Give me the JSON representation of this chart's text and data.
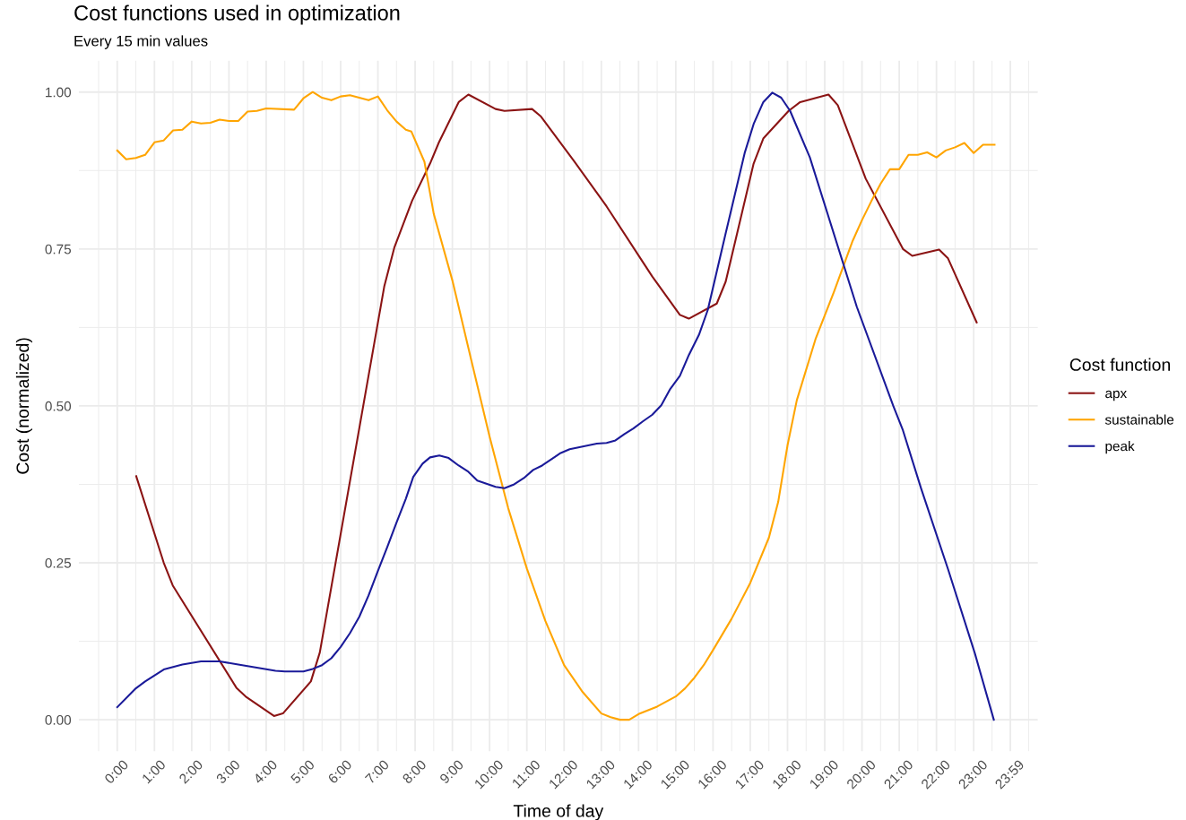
{
  "chart_data": {
    "type": "line",
    "title": "Cost functions used in optimization",
    "subtitle": "Every 15 min values",
    "xlabel": "Time of day",
    "ylabel": "Cost (normalized)",
    "legend_title": "Cost function",
    "xlim": [
      -1.03,
      24.72
    ],
    "ylim": [
      -0.05,
      1.05
    ],
    "xticks": [
      {
        "value": 0,
        "label": "0:00"
      },
      {
        "value": 1,
        "label": "1:00"
      },
      {
        "value": 2,
        "label": "2:00"
      },
      {
        "value": 3,
        "label": "3:00"
      },
      {
        "value": 4,
        "label": "4:00"
      },
      {
        "value": 5,
        "label": "5:00"
      },
      {
        "value": 6,
        "label": "6:00"
      },
      {
        "value": 7,
        "label": "7:00"
      },
      {
        "value": 8,
        "label": "8:00"
      },
      {
        "value": 9,
        "label": "9:00"
      },
      {
        "value": 10,
        "label": "10:00"
      },
      {
        "value": 11,
        "label": "11:00"
      },
      {
        "value": 12,
        "label": "12:00"
      },
      {
        "value": 13,
        "label": "13:00"
      },
      {
        "value": 14,
        "label": "14:00"
      },
      {
        "value": 15,
        "label": "15:00"
      },
      {
        "value": 16,
        "label": "16:00"
      },
      {
        "value": 17,
        "label": "17:00"
      },
      {
        "value": 18,
        "label": "18:00"
      },
      {
        "value": 19,
        "label": "19:00"
      },
      {
        "value": 20,
        "label": "20:00"
      },
      {
        "value": 21,
        "label": "21:00"
      },
      {
        "value": 22,
        "label": "22:00"
      },
      {
        "value": 23,
        "label": "23:00"
      },
      {
        "value": 23.983,
        "label": "23:59"
      }
    ],
    "yticks": [
      {
        "value": 0,
        "label": "0.00"
      },
      {
        "value": 0.25,
        "label": "0.25"
      },
      {
        "value": 0.5,
        "label": "0.50"
      },
      {
        "value": 0.75,
        "label": "0.75"
      },
      {
        "value": 1,
        "label": "1.00"
      }
    ],
    "grid": true,
    "legend": "right",
    "line_style": "solid",
    "marker": "none",
    "series": [
      {
        "name": "apx",
        "color": "#8b1414",
        "x": [
          0.51,
          1.25,
          1.49,
          3.2,
          3.47,
          4.21,
          4.45,
          5.2,
          5.44,
          7.17,
          7.44,
          7.92,
          8.4,
          8.64,
          9.17,
          9.43,
          10.16,
          10.4,
          11.14,
          11.38,
          12.27,
          13.14,
          14.15,
          14.37,
          15.11,
          15.35,
          16.1,
          16.34,
          17.09,
          17.35,
          18.03,
          18.34,
          19.1,
          19.35,
          20.1,
          21.1,
          21.35,
          22.07,
          22.31,
          23.08
        ],
        "values": [
          0.388,
          0.25,
          0.214,
          0.051,
          0.036,
          0.006,
          0.01,
          0.061,
          0.107,
          0.69,
          0.752,
          0.827,
          0.886,
          0.92,
          0.984,
          0.996,
          0.973,
          0.97,
          0.973,
          0.961,
          0.89,
          0.818,
          0.726,
          0.706,
          0.645,
          0.639,
          0.663,
          0.698,
          0.886,
          0.926,
          0.97,
          0.984,
          0.996,
          0.979,
          0.862,
          0.75,
          0.739,
          0.749,
          0.735,
          0.633
        ]
      },
      {
        "name": "sustainable",
        "color": "#ffa500",
        "x": [
          0,
          0.24,
          0.5,
          0.75,
          1.0,
          1.25,
          1.5,
          1.75,
          2.0,
          2.25,
          2.5,
          2.75,
          3.0,
          3.25,
          3.5,
          3.75,
          4.0,
          4.75,
          5.0,
          5.25,
          5.5,
          5.75,
          6.0,
          6.25,
          6.5,
          6.75,
          7.0,
          7.25,
          7.5,
          7.75,
          7.9,
          8.25,
          8.5,
          9.0,
          9.5,
          10.0,
          10.5,
          11.0,
          11.5,
          12.0,
          12.5,
          13.0,
          13.25,
          13.5,
          13.75,
          14.0,
          14.5,
          15.0,
          15.25,
          15.5,
          15.75,
          16.0,
          16.5,
          17.0,
          17.5,
          17.75,
          18.0,
          18.25,
          18.75,
          19.25,
          19.75,
          20.0,
          20.25,
          20.5,
          20.75,
          21.0,
          21.25,
          21.5,
          21.75,
          22.0,
          22.25,
          22.5,
          22.75,
          23.0,
          23.25,
          23.56
        ],
        "values": [
          0.907,
          0.893,
          0.895,
          0.9,
          0.92,
          0.923,
          0.939,
          0.94,
          0.953,
          0.95,
          0.951,
          0.956,
          0.954,
          0.954,
          0.969,
          0.97,
          0.974,
          0.972,
          0.99,
          1.0,
          0.991,
          0.987,
          0.993,
          0.995,
          0.991,
          0.987,
          0.993,
          0.971,
          0.953,
          0.94,
          0.937,
          0.889,
          0.806,
          0.7,
          0.575,
          0.451,
          0.337,
          0.241,
          0.157,
          0.087,
          0.044,
          0.01,
          0.004,
          0.0,
          0.0,
          0.009,
          0.021,
          0.037,
          0.05,
          0.067,
          0.087,
          0.111,
          0.161,
          0.218,
          0.29,
          0.347,
          0.437,
          0.509,
          0.606,
          0.682,
          0.763,
          0.796,
          0.826,
          0.854,
          0.877,
          0.877,
          0.9,
          0.9,
          0.904,
          0.896,
          0.907,
          0.912,
          0.919,
          0.903,
          0.916,
          0.916
        ]
      },
      {
        "name": "peak",
        "color": "#1a1a99",
        "x": [
          0,
          0.5,
          0.75,
          1.25,
          1.75,
          2.25,
          2.75,
          3.25,
          3.75,
          4.25,
          4.5,
          5.0,
          5.25,
          5.5,
          5.75,
          6.0,
          6.25,
          6.5,
          6.75,
          7.0,
          7.25,
          7.5,
          7.75,
          7.95,
          8.2,
          8.4,
          8.65,
          8.9,
          9.17,
          9.43,
          9.67,
          10.16,
          10.4,
          10.66,
          10.92,
          11.17,
          11.41,
          11.91,
          12.15,
          12.88,
          13.14,
          13.38,
          13.62,
          13.86,
          14.13,
          14.37,
          14.61,
          14.85,
          15.11,
          15.35,
          15.62,
          15.86,
          16.34,
          16.85,
          17.09,
          17.35,
          17.59,
          17.83,
          18.07,
          18.6,
          19.86,
          20.84,
          21.1,
          21.59,
          22.31,
          23.03,
          23.54
        ],
        "values": [
          0.02,
          0.05,
          0.061,
          0.08,
          0.088,
          0.093,
          0.093,
          0.088,
          0.083,
          0.078,
          0.077,
          0.077,
          0.081,
          0.087,
          0.098,
          0.116,
          0.138,
          0.164,
          0.198,
          0.237,
          0.275,
          0.314,
          0.352,
          0.387,
          0.408,
          0.418,
          0.421,
          0.417,
          0.405,
          0.395,
          0.381,
          0.371,
          0.369,
          0.375,
          0.385,
          0.398,
          0.405,
          0.425,
          0.431,
          0.44,
          0.441,
          0.445,
          0.455,
          0.464,
          0.476,
          0.486,
          0.501,
          0.527,
          0.548,
          0.581,
          0.613,
          0.653,
          0.775,
          0.903,
          0.949,
          0.984,
          0.999,
          0.991,
          0.97,
          0.896,
          0.658,
          0.5,
          0.461,
          0.368,
          0.24,
          0.106,
          0.0
        ]
      }
    ]
  }
}
